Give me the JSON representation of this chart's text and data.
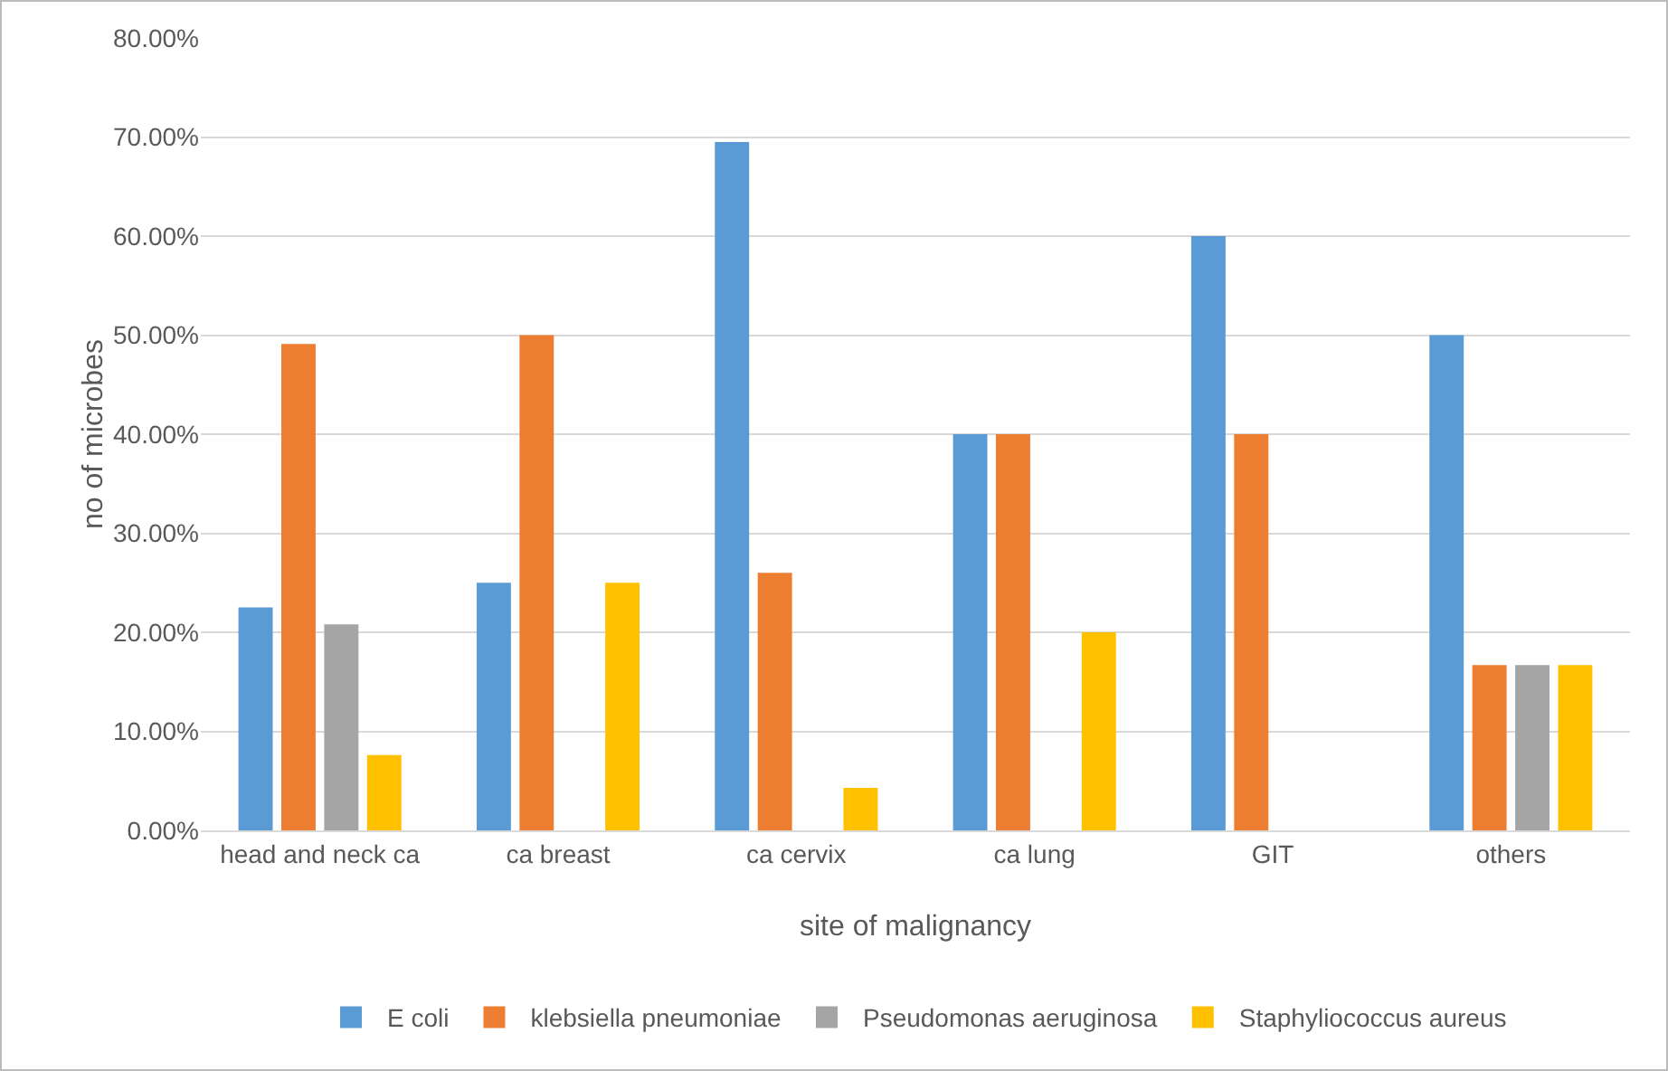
{
  "chart_data": {
    "type": "bar",
    "xlabel": "site of malignancy",
    "ylabel": "no of microbes",
    "categories": [
      "head and neck ca",
      "ca breast",
      "ca cervix",
      "ca lung",
      "GIT",
      "others"
    ],
    "series": [
      {
        "name": "E coli",
        "color": "#5b9bd5",
        "values": [
          22.5,
          25,
          69.5,
          40,
          60,
          50
        ]
      },
      {
        "name": "klebsiella pneumoniae",
        "color": "#ed7d31",
        "values": [
          49.1,
          50,
          26,
          40,
          40,
          16.7
        ]
      },
      {
        "name": "Pseudomonas aeruginosa",
        "color": "#a5a5a5",
        "values": [
          20.8,
          0,
          0,
          0,
          0,
          16.7
        ]
      },
      {
        "name": "Staphyliococcus aureus",
        "color": "#ffc000",
        "values": [
          7.6,
          25,
          4.3,
          20,
          0,
          16.7
        ]
      }
    ],
    "ylim": [
      0,
      80
    ],
    "yticks": [
      {
        "value": 0,
        "label": "0.00%"
      },
      {
        "value": 10,
        "label": "10.00%"
      },
      {
        "value": 20,
        "label": "20.00%"
      },
      {
        "value": 30,
        "label": "30.00%"
      },
      {
        "value": 40,
        "label": "40.00%"
      },
      {
        "value": 50,
        "label": "50.00%"
      },
      {
        "value": 60,
        "label": "60.00%"
      },
      {
        "value": 70,
        "label": "70.00%"
      },
      {
        "value": 80,
        "label": "80.00%"
      }
    ],
    "grid": "y",
    "legend": "bottom"
  }
}
